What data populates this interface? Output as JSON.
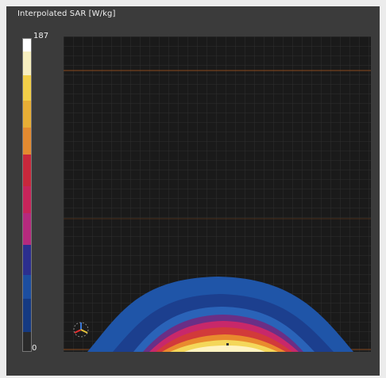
{
  "legend": {
    "title": "Interpolated SAR [W/kg]",
    "max_label": "187",
    "min_label": "0",
    "colors": [
      "#ffffff",
      "#f7efc0",
      "#f2cf48",
      "#e8ae35",
      "#e38a30",
      "#c8283c",
      "#c7245a",
      "#b52a7e",
      "#2c2f8f",
      "#1c4ea0",
      "#153a82",
      "#2a2a2a"
    ]
  },
  "colors": {
    "background": "#3b3b3b",
    "plot_background": "#1a1a1a",
    "grid": "#333333",
    "guide_line": "#8a4a1e",
    "blue_outer": "#1f55a8",
    "blue_mid": "#1c3f8e",
    "blue_inner": "#2a63b8",
    "purple": "#6a2f86",
    "magenta": "#c8286a",
    "red": "#d23a3a",
    "orange": "#e98a2e",
    "yellow": "#f4d75a",
    "cream": "#fff3c0"
  },
  "icons": {
    "axes_gizmo": "axes-gizmo-icon"
  }
}
